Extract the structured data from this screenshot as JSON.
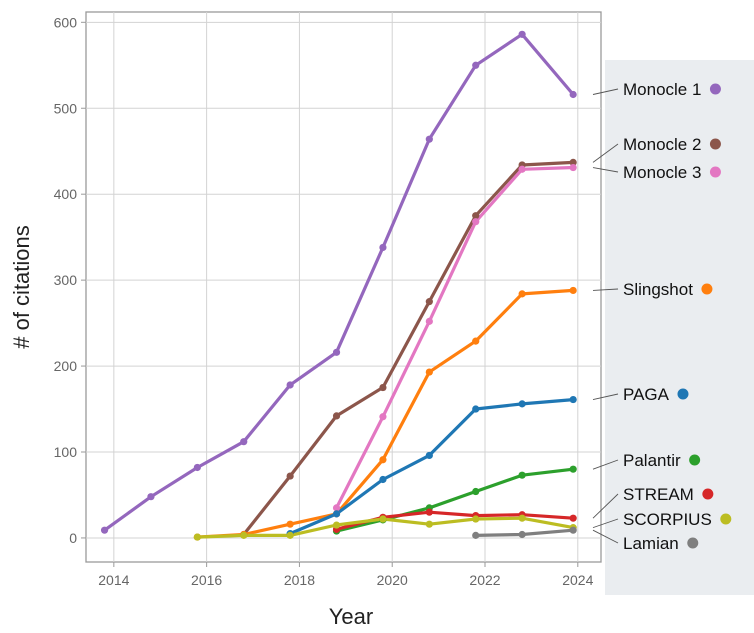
{
  "chart_data": {
    "type": "line",
    "title": "",
    "xlabel": "Year",
    "ylabel": "# of citations",
    "xlim": [
      2013.4,
      2024.5
    ],
    "ylim": [
      -28,
      612
    ],
    "x_ticks": [
      2014,
      2016,
      2018,
      2020,
      2022,
      2024
    ],
    "y_ticks": [
      0,
      100,
      200,
      300,
      400,
      500,
      600
    ],
    "grid": "horizontal",
    "legend_position": "right",
    "series": [
      {
        "name": "Monocle 1",
        "color": "#9467bd",
        "x": [
          2013.8,
          2014.8,
          2015.8,
          2016.8,
          2017.8,
          2018.8,
          2019.8,
          2020.8,
          2021.8,
          2022.8,
          2023.9
        ],
        "y": [
          9,
          48,
          82,
          112,
          178,
          216,
          338,
          464,
          550,
          586,
          516
        ]
      },
      {
        "name": "Monocle 2",
        "color": "#8c564b",
        "x": [
          2016.8,
          2017.8,
          2018.8,
          2019.8,
          2020.8,
          2021.8,
          2022.8,
          2023.9
        ],
        "y": [
          4,
          72,
          142,
          175,
          275,
          375,
          434,
          437
        ]
      },
      {
        "name": "Monocle 3",
        "color": "#e377c2",
        "x": [
          2018.8,
          2019.8,
          2020.8,
          2021.8,
          2022.8,
          2023.9
        ],
        "y": [
          35,
          141,
          252,
          368,
          429,
          431
        ]
      },
      {
        "name": "Slingshot",
        "color": "#ff7f0e",
        "x": [
          2015.8,
          2016.8,
          2017.8,
          2018.8,
          2019.8,
          2020.8,
          2021.8,
          2022.8,
          2023.9
        ],
        "y": [
          1,
          4,
          16,
          28,
          91,
          193,
          229,
          284,
          288
        ]
      },
      {
        "name": "PAGA",
        "color": "#1f77b4",
        "x": [
          2017.8,
          2018.8,
          2019.8,
          2020.8,
          2021.8,
          2022.8,
          2023.9
        ],
        "y": [
          5,
          28,
          68,
          96,
          150,
          156,
          161
        ]
      },
      {
        "name": "Palantir",
        "color": "#2ca02c",
        "x": [
          2018.8,
          2019.8,
          2020.8,
          2021.8,
          2022.8,
          2023.9
        ],
        "y": [
          8,
          21,
          35,
          54,
          73,
          80
        ]
      },
      {
        "name": "STREAM",
        "color": "#d62728",
        "x": [
          2018.8,
          2019.8,
          2020.8,
          2021.8,
          2022.8,
          2023.9
        ],
        "y": [
          10,
          24,
          30,
          26,
          27,
          23
        ]
      },
      {
        "name": "SCORPIUS",
        "color": "#bcbd22",
        "x": [
          2015.8,
          2016.8,
          2017.8,
          2018.8,
          2019.8,
          2020.8,
          2021.8,
          2022.8,
          2023.9
        ],
        "y": [
          1,
          3,
          3,
          15,
          22,
          16,
          22,
          23,
          12
        ]
      },
      {
        "name": "Lamian",
        "color": "#7f7f7f",
        "x": [
          2021.8,
          2022.8,
          2023.9
        ],
        "y": [
          3,
          4,
          9
        ]
      }
    ]
  }
}
